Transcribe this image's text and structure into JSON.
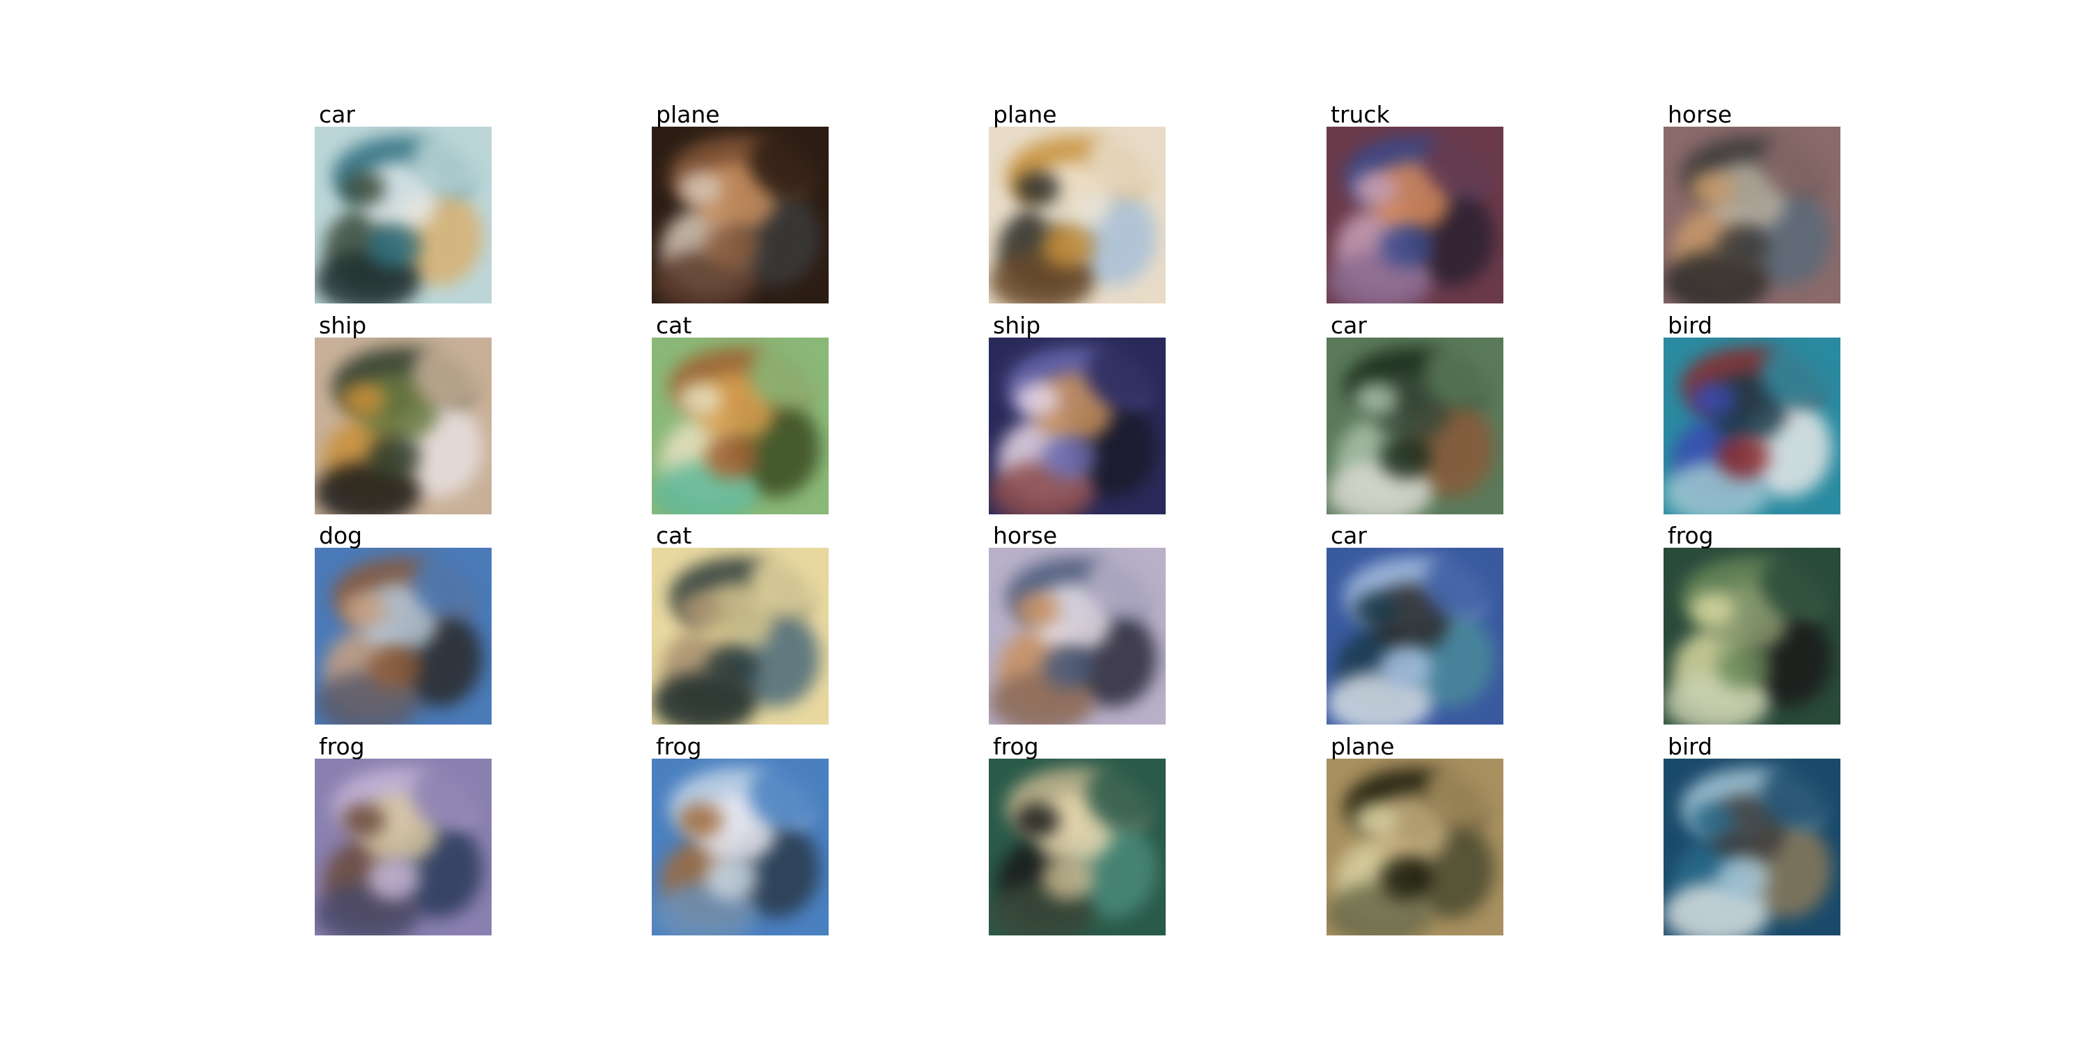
{
  "tiles": [
    {
      "label": "car",
      "colors": [
        "#bcd6d8",
        "#2f6f80",
        "#3a4a3a",
        "#d8b070",
        "#e8eef0",
        "#1f2f30"
      ]
    },
    {
      "label": "plane",
      "colors": [
        "#2c1d14",
        "#8a5a3a",
        "#d8c8b8",
        "#3b3b3b",
        "#c89060",
        "#5a3a2a"
      ]
    },
    {
      "label": "plane",
      "colors": [
        "#e8dcc8",
        "#c8903a",
        "#2a2a24",
        "#a8c0d8",
        "#f0e8d8",
        "#6a4a2a"
      ]
    },
    {
      "label": "truck",
      "colors": [
        "#6a3a4a",
        "#3a4a8a",
        "#c8a0b8",
        "#2a2030",
        "#d88a5a",
        "#8a6a90"
      ]
    },
    {
      "label": "horse",
      "colors": [
        "#8a6a6a",
        "#3a3a3a",
        "#c89a6a",
        "#5a6a7a",
        "#b8b0a0",
        "#2a2a2a"
      ]
    },
    {
      "label": "ship",
      "colors": [
        "#c8b098",
        "#2a3a2a",
        "#c8903a",
        "#e8e0e0",
        "#6a7a40",
        "#1a1a1a"
      ]
    },
    {
      "label": "cat",
      "colors": [
        "#8ab878",
        "#a06030",
        "#e8e0c0",
        "#3a4a20",
        "#d8a050",
        "#60b898"
      ]
    },
    {
      "label": "ship",
      "colors": [
        "#2a2a5a",
        "#6a6ab0",
        "#e8d8e8",
        "#1a1a2a",
        "#c8905a",
        "#8a4a4a"
      ]
    },
    {
      "label": "car",
      "colors": [
        "#5a7a5a",
        "#1a2a1a",
        "#a8c0a8",
        "#8a5a3a",
        "#3a4a3a",
        "#d8d8d0"
      ]
    },
    {
      "label": "bird",
      "colors": [
        "#2a8aa0",
        "#8a2a2a",
        "#3a4ab0",
        "#e8e8e8",
        "#1a3a4a",
        "#a0c8d0"
      ]
    },
    {
      "label": "dog",
      "colors": [
        "#4a7ab8",
        "#8a5a3a",
        "#c8a080",
        "#2a2a2a",
        "#b8c8d8",
        "#5a5a6a"
      ]
    },
    {
      "label": "cat",
      "colors": [
        "#e8d8a0",
        "#2a3a3a",
        "#a89070",
        "#4a6a7a",
        "#d8c890",
        "#1a2a2a"
      ]
    },
    {
      "label": "horse",
      "colors": [
        "#b8b0c8",
        "#4a5a7a",
        "#c89060",
        "#2a2a3a",
        "#e8e0e8",
        "#8a6a5a"
      ]
    },
    {
      "label": "car",
      "colors": [
        "#3a5aa0",
        "#a8c0e0",
        "#1a3a4a",
        "#4a8a9a",
        "#2a2a2a",
        "#d8e0e8"
      ]
    },
    {
      "label": "frog",
      "colors": [
        "#2a4a3a",
        "#6a8a5a",
        "#d8d8a0",
        "#1a1a1a",
        "#8a9a70",
        "#c8d0b0"
      ]
    },
    {
      "label": "frog",
      "colors": [
        "#8a80b0",
        "#c8b8d8",
        "#6a4a3a",
        "#2a3a5a",
        "#d8c8a0",
        "#4a4a6a"
      ]
    },
    {
      "label": "frog",
      "colors": [
        "#4a80c0",
        "#c8d8e8",
        "#a06a3a",
        "#2a3a4a",
        "#e8e8f0",
        "#6a90b8"
      ]
    },
    {
      "label": "frog",
      "colors": [
        "#2a5a4a",
        "#c8b890",
        "#1a1a1a",
        "#4a8a7a",
        "#e8d8b0",
        "#3a4a3a"
      ]
    },
    {
      "label": "plane",
      "colors": [
        "#a89060",
        "#1a1a0a",
        "#d8d0a0",
        "#4a4a30",
        "#c8b080",
        "#6a6a4a"
      ]
    },
    {
      "label": "bird",
      "colors": [
        "#1a4a6a",
        "#a8c8d8",
        "#2a6a8a",
        "#8a7a5a",
        "#3a3a3a",
        "#d8e0e0"
      ]
    }
  ]
}
